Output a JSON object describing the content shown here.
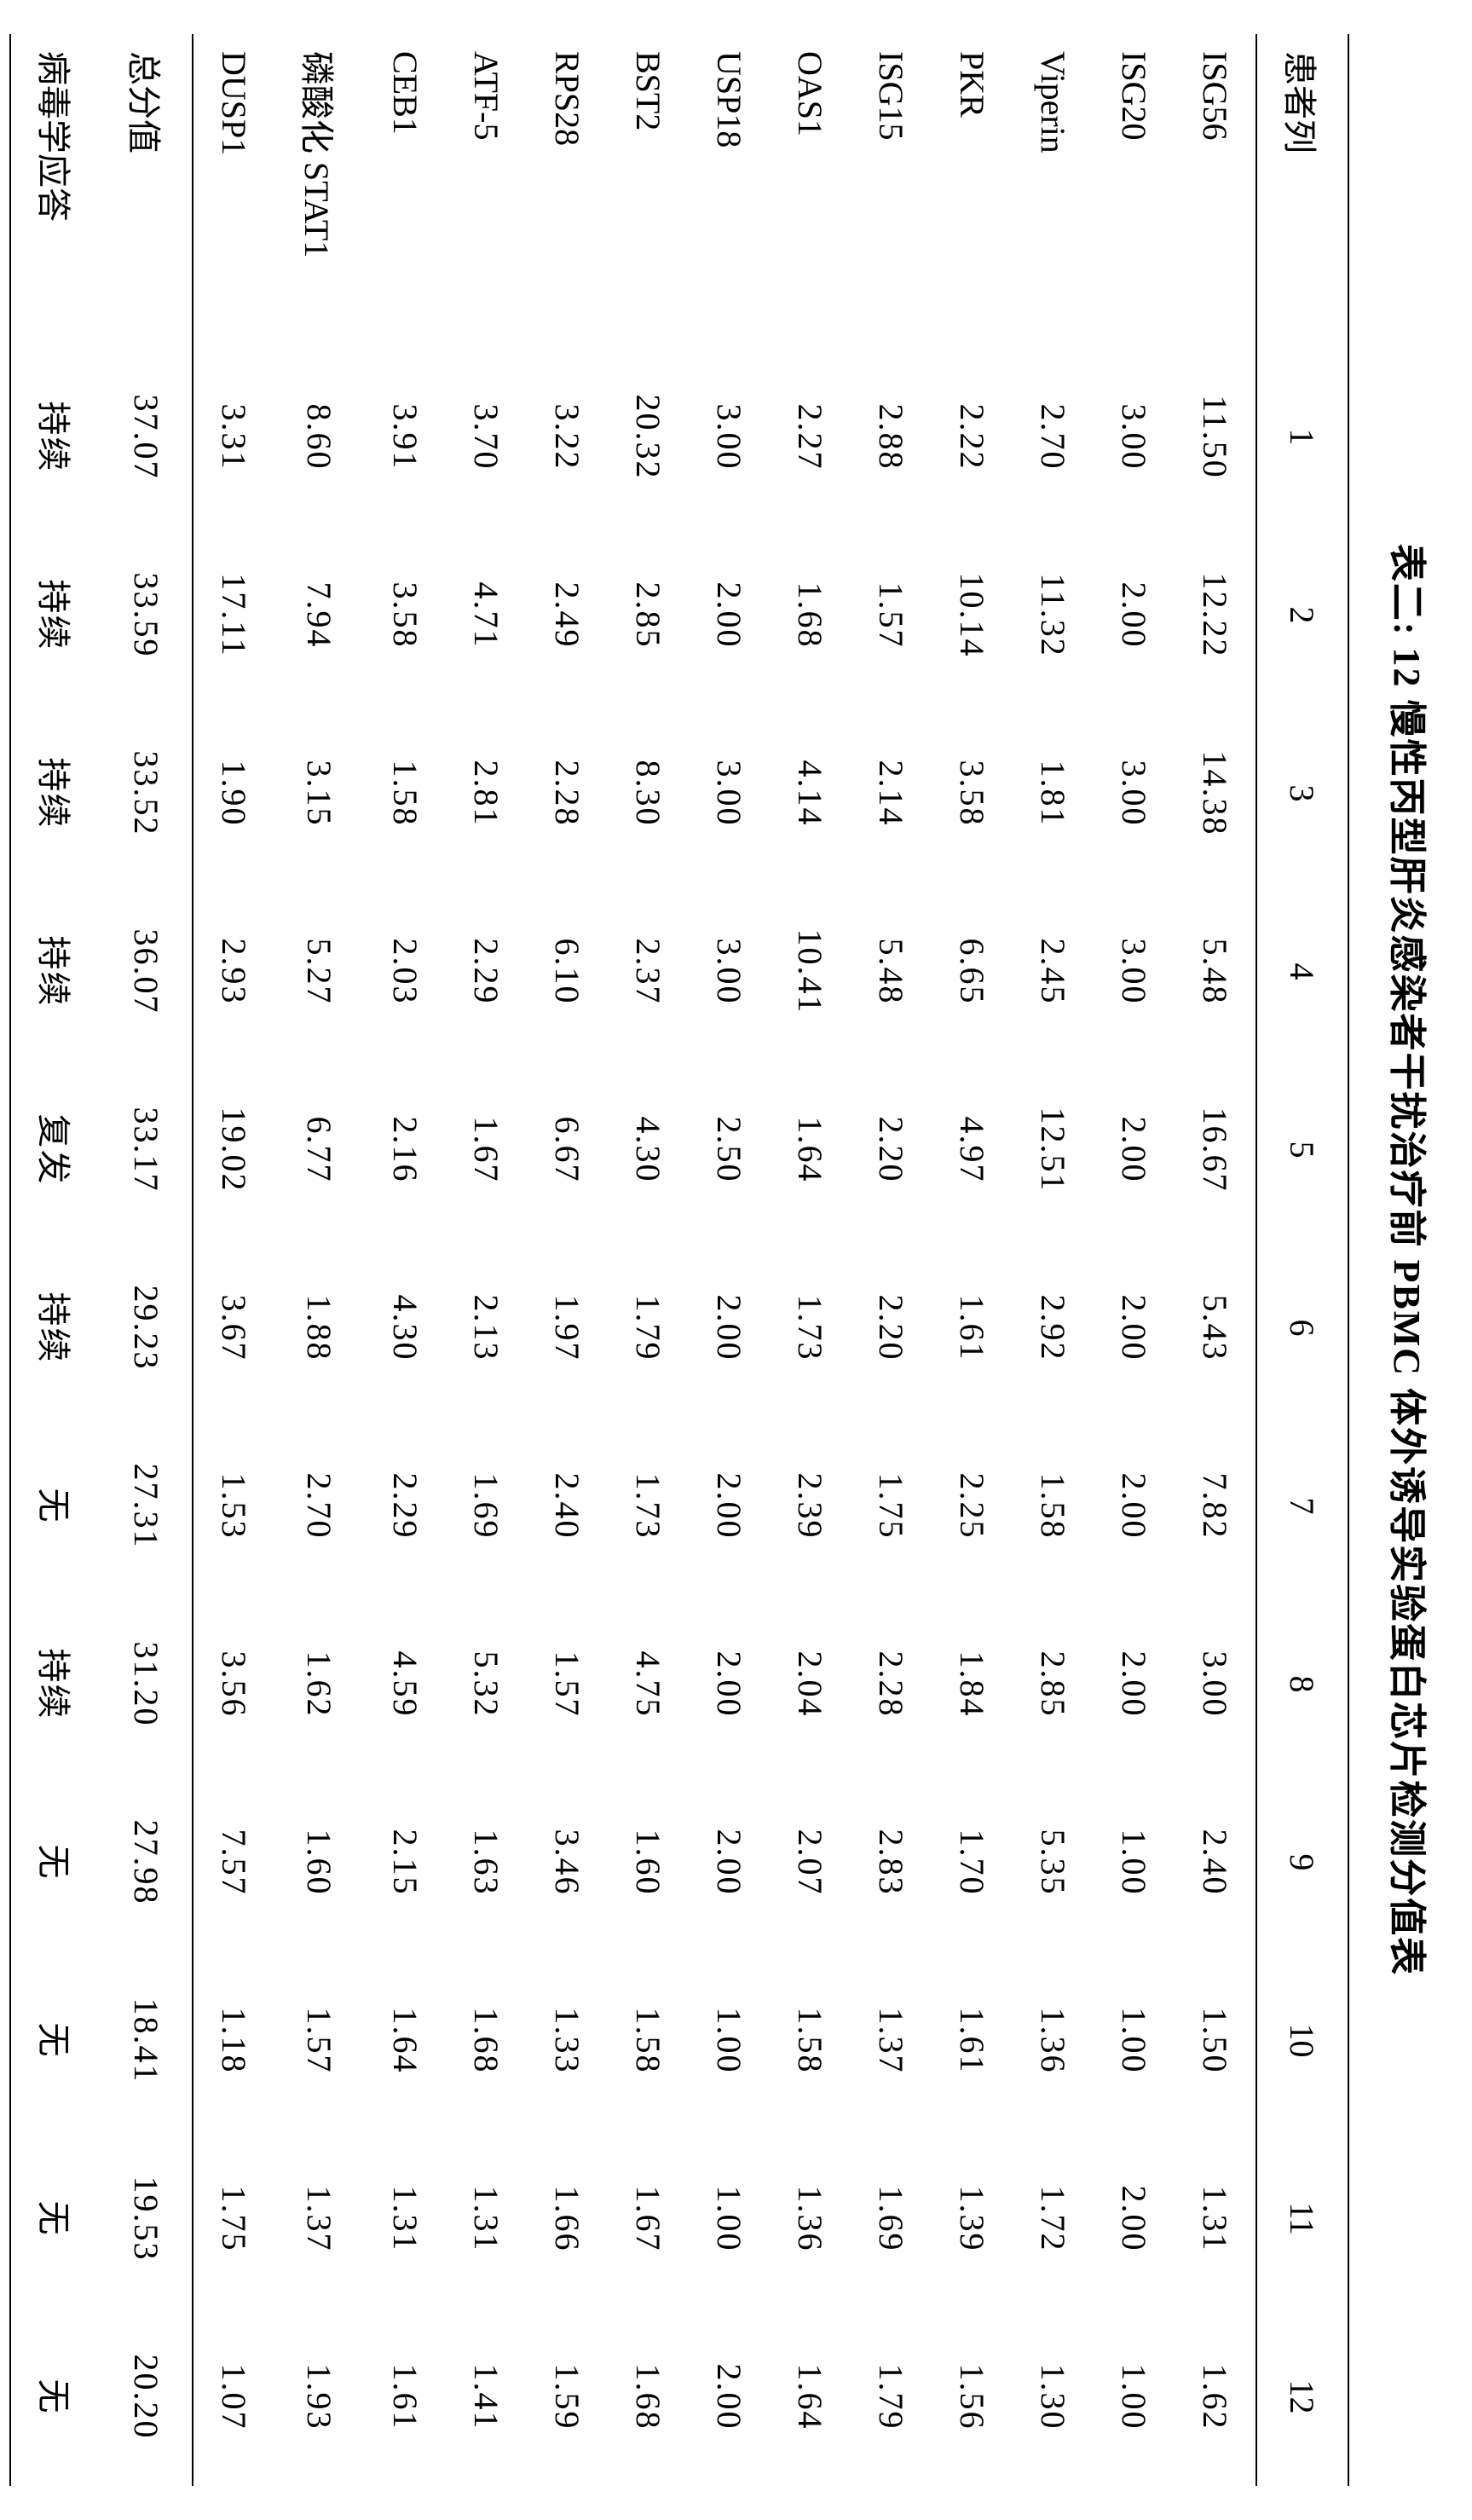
{
  "title": "表二: 12 慢性丙型肝炎感染者干扰治疗前 PBMC 体外诱导实验蛋白芯片检测分值表",
  "background_color": "#ffffff",
  "text_color": "#000000",
  "border_color": "#000000",
  "font_family": "SimSun, 宋体, serif",
  "title_fontsize": 44,
  "cell_fontsize": 40,
  "table": {
    "type": "table",
    "header_label": "患者列",
    "patients": [
      "1",
      "2",
      "3",
      "4",
      "5",
      "6",
      "7",
      "8",
      "9",
      "10",
      "11",
      "12"
    ],
    "rows": [
      {
        "label": "ISG56",
        "values": [
          "11.50",
          "12.22",
          "14.38",
          "5.48",
          "16.67",
          "5.43",
          "7.82",
          "3.00",
          "2.40",
          "1.50",
          "1.31",
          "1.62"
        ]
      },
      {
        "label": "ISG20",
        "values": [
          "3.00",
          "2.00",
          "3.00",
          "3.00",
          "2.00",
          "2.00",
          "2.00",
          "2.00",
          "1.00",
          "1.00",
          "2.00",
          "1.00"
        ]
      },
      {
        "label": "Viperin",
        "values": [
          "2.70",
          "11.32",
          "1.81",
          "2.45",
          "12.51",
          "2.92",
          "1.58",
          "2.85",
          "5.35",
          "1.36",
          "1.72",
          "1.30"
        ]
      },
      {
        "label": "PKR",
        "values": [
          "2.22",
          "10.14",
          "3.58",
          "6.65",
          "4.97",
          "1.61",
          "2.25",
          "1.84",
          "1.70",
          "1.61",
          "1.39",
          "1.56"
        ]
      },
      {
        "label": "ISG15",
        "values": [
          "2.88",
          "1.57",
          "2.14",
          "5.48",
          "2.20",
          "2.20",
          "1.75",
          "2.28",
          "2.83",
          "1.37",
          "1.69",
          "1.79"
        ]
      },
      {
        "label": "OAS1",
        "values": [
          "2.27",
          "1.68",
          "4.14",
          "10.41",
          "1.64",
          "1.73",
          "2.39",
          "2.04",
          "2.07",
          "1.58",
          "1.36",
          "1.64"
        ]
      },
      {
        "label": "USP18",
        "values": [
          "3.00",
          "2.00",
          "3.00",
          "3.00",
          "2.50",
          "2.00",
          "2.00",
          "2.00",
          "2.00",
          "1.00",
          "1.00",
          "2.00"
        ]
      },
      {
        "label": "BST2",
        "values": [
          "20.32",
          "2.85",
          "8.30",
          "2.37",
          "4.30",
          "1.79",
          "1.73",
          "4.75",
          "1.60",
          "1.58",
          "1.67",
          "1.68"
        ]
      },
      {
        "label": "RPS28",
        "values": [
          "3.22",
          "2.49",
          "2.28",
          "6.10",
          "6.67",
          "1.97",
          "2.40",
          "1.57",
          "3.46",
          "1.33",
          "1.66",
          "1.59"
        ]
      },
      {
        "label": "ATF-5",
        "values": [
          "3.70",
          "4.71",
          "2.81",
          "2.29",
          "1.67",
          "2.13",
          "1.69",
          "5.32",
          "1.63",
          "1.68",
          "1.31",
          "1.41"
        ]
      },
      {
        "label": "CEB1",
        "values": [
          "3.91",
          "3.58",
          "1.58",
          "2.03",
          "2.16",
          "4.30",
          "2.29",
          "4.59",
          "2.15",
          "1.64",
          "1.31",
          "1.61"
        ]
      },
      {
        "label": "磷酸化 STAT1",
        "values": [
          "8.60",
          "7.94",
          "3.15",
          "5.27",
          "6.77",
          "1.88",
          "2.70",
          "1.62",
          "1.60",
          "1.57",
          "1.37",
          "1.93"
        ]
      },
      {
        "label": "DUSP1",
        "values": [
          "3.31",
          "17.11",
          "1.90",
          "2.93",
          "19.02",
          "3.67",
          "1.53",
          "3.56",
          "7.57",
          "1.18",
          "1.75",
          "1.07"
        ]
      }
    ],
    "footer": [
      {
        "label": "总分值",
        "values": [
          "37.07",
          "33.59",
          "33.52",
          "36.07",
          "33.17",
          "29.23",
          "27.31",
          "31.20",
          "27.98",
          "18.41",
          "19.53",
          "20.20"
        ]
      },
      {
        "label": "病毒学应答",
        "values": [
          "持续",
          "持续",
          "持续",
          "持续",
          "复发",
          "持续",
          "无",
          "持续",
          "无",
          "无",
          "无",
          "无"
        ]
      }
    ]
  }
}
